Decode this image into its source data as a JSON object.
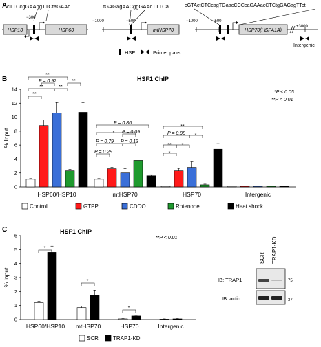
{
  "panel_a": {
    "letter": "A",
    "genes": [
      {
        "seq": "cTTCcgGAAggTTCtaGAAc",
        "tick_label": "−300",
        "left_gene": "HSP10",
        "right_gene": "HSP60"
      },
      {
        "seq": "tGAGagAACggGAAcTTTCa",
        "tick_left": "−1000",
        "tick_mid": "−500",
        "gene": "mtHSP70"
      },
      {
        "seq": "cGTActCTCcagTGaacCCCcaGAAacCTCtgGAGagTTct",
        "tick_left": "−1000",
        "tick_mid": "−500",
        "gene": "HSP70(HSPA1A)",
        "tick_right": "+3000",
        "intergenic": "Intergenic"
      }
    ],
    "legend": {
      "hse": "HSE",
      "primer": "Primer pairs"
    }
  },
  "panel_b": {
    "letter": "B",
    "title": "HSF1 ChIP",
    "sig1": "*P < 0.05",
    "sig2": "**P < 0.01",
    "annotations": [
      "**",
      "**",
      "P = 0.92",
      "**",
      "**",
      "**",
      "P = 0.86",
      "*",
      "P = 0.09",
      "P = 0.79",
      "P = 0.13",
      "P = 0.29",
      "**",
      "P = 0.98",
      "*",
      "**",
      "*",
      "*"
    ]
  },
  "panel_c": {
    "letter": "C",
    "title": "HSF1 ChIP",
    "sig": "**P < 0.01",
    "stars": [
      "*",
      "*",
      "*"
    ],
    "blot": {
      "lane1": "SCR",
      "lane2": "TRAP1-KD",
      "ib1": "IB: TRAP1",
      "ib2": "IB: actin",
      "mw1": "75",
      "mw2": "37"
    }
  },
  "chart_data": [
    {
      "type": "bar",
      "title": "HSF1 ChIP",
      "ylabel": "% Input",
      "ylim": [
        0,
        14
      ],
      "yticks": [
        "0",
        "2",
        "4",
        "6",
        "8",
        "10",
        "12",
        "14"
      ],
      "categories": [
        "HSP60/HSP10",
        "mtHSP70",
        "HSP70",
        "Intergenic"
      ],
      "series": [
        {
          "name": "Control",
          "color": "#ffffff",
          "values": [
            1.1,
            1.1,
            0.1,
            0.1
          ],
          "errors": [
            0.1,
            0.1,
            0.05,
            0.05
          ]
        },
        {
          "name": "GTPP",
          "color": "#ff1a1a",
          "values": [
            8.8,
            2.6,
            2.3,
            0.1
          ],
          "errors": [
            0.8,
            0.2,
            0.35,
            0.05
          ]
        },
        {
          "name": "CDDO",
          "color": "#3a6fd8",
          "values": [
            10.6,
            2.0,
            2.8,
            0.1
          ],
          "errors": [
            1.5,
            0.6,
            0.8,
            0.05
          ]
        },
        {
          "name": "Rotenone",
          "color": "#1f9a2e",
          "values": [
            2.3,
            3.8,
            0.3,
            0.1
          ],
          "errors": [
            0.2,
            0.8,
            0.1,
            0.05
          ]
        },
        {
          "name": "Heat shock",
          "color": "#000000",
          "values": [
            10.7,
            1.6,
            5.4,
            0.1
          ],
          "errors": [
            1.4,
            0.15,
            0.8,
            0.05
          ]
        }
      ]
    },
    {
      "type": "bar",
      "title": "HSF1 ChIP",
      "ylabel": "% Input",
      "ylim": [
        0,
        6
      ],
      "yticks": [
        "0",
        "1",
        "2",
        "3",
        "4",
        "5",
        "6"
      ],
      "categories": [
        "HSP60/HSP10",
        "mtHSP70",
        "HSP70",
        "Intergenic"
      ],
      "series": [
        {
          "name": "SCR",
          "color": "#ffffff",
          "values": [
            1.2,
            0.85,
            0.05,
            0.03
          ],
          "errors": [
            0.1,
            0.1,
            0.02,
            0.02
          ]
        },
        {
          "name": "TRAP1-KD",
          "color": "#000000",
          "values": [
            4.8,
            1.75,
            0.25,
            0.05
          ],
          "errors": [
            0.45,
            0.35,
            0.05,
            0.02
          ]
        }
      ]
    }
  ]
}
